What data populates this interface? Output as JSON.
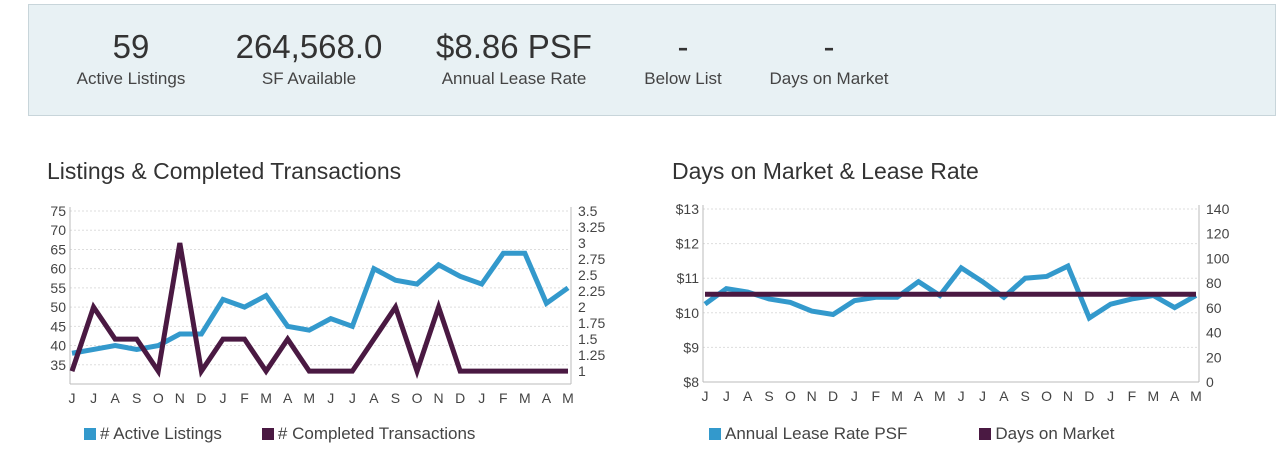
{
  "stats": [
    {
      "value": "59",
      "label": "Active Listings"
    },
    {
      "value": "264,568.0",
      "label": "SF Available"
    },
    {
      "value": "$8.86 PSF",
      "label": "Annual Lease Rate"
    },
    {
      "value": "-",
      "label": "Below List"
    },
    {
      "value": "-",
      "label": "Days on Market"
    }
  ],
  "colors": {
    "blue": "#3399cc",
    "purple": "#4a1942"
  },
  "chart_data": [
    {
      "type": "line",
      "title": "Listings & Completed Transactions",
      "categories": [
        "J",
        "J",
        "A",
        "S",
        "O",
        "N",
        "D",
        "J",
        "F",
        "M",
        "A",
        "M",
        "J",
        "J",
        "A",
        "S",
        "O",
        "N",
        "D",
        "J",
        "F",
        "M",
        "A",
        "M"
      ],
      "y_left": {
        "ticks": [
          "75",
          "70",
          "65",
          "60",
          "55",
          "50",
          "45",
          "40",
          "35"
        ],
        "range": [
          30,
          75
        ]
      },
      "y_right": {
        "ticks": [
          "3.5",
          "3.25",
          "3",
          "2.75",
          "2.5",
          "2.25",
          "2",
          "1.75",
          "1.5",
          "1.25",
          "1"
        ],
        "range": [
          0.8,
          3.5
        ]
      },
      "grid": true,
      "series": [
        {
          "name": "# Active Listings",
          "axis": "left",
          "color": "#3399cc",
          "values": [
            38,
            39,
            40,
            39,
            40,
            43,
            43,
            52,
            50,
            53,
            45,
            44,
            47,
            45,
            60,
            57,
            56,
            61,
            58,
            56,
            64,
            64,
            51,
            55
          ]
        },
        {
          "name": "# Completed Transactions",
          "axis": "right",
          "color": "#4a1942",
          "values": [
            1,
            2,
            1.5,
            1.5,
            1,
            3,
            1,
            1.5,
            1.5,
            1,
            1.5,
            1,
            1,
            1,
            1.5,
            2,
            1,
            2,
            1,
            1,
            1,
            1,
            1,
            1
          ]
        }
      ],
      "legend": "bottom"
    },
    {
      "type": "line",
      "title": "Days on Market & Lease Rate",
      "categories": [
        "J",
        "J",
        "A",
        "S",
        "O",
        "N",
        "D",
        "J",
        "F",
        "M",
        "A",
        "M",
        "J",
        "J",
        "A",
        "S",
        "O",
        "N",
        "D",
        "J",
        "F",
        "M",
        "A",
        "M"
      ],
      "y_left": {
        "ticks": [
          "$13",
          "$12",
          "$11",
          "$10",
          "$9",
          "$8"
        ],
        "range": [
          8,
          13
        ]
      },
      "y_right": {
        "ticks": [
          "140",
          "120",
          "100",
          "80",
          "60",
          "40",
          "20",
          "0"
        ],
        "range": [
          0,
          140
        ]
      },
      "grid": true,
      "series": [
        {
          "name": "Annual Lease Rate PSF",
          "axis": "left",
          "color": "#3399cc",
          "values": [
            10.25,
            10.7,
            10.6,
            10.4,
            10.3,
            10.05,
            9.95,
            10.35,
            10.45,
            10.45,
            10.9,
            10.5,
            11.3,
            10.9,
            10.45,
            11.0,
            11.05,
            11.35,
            9.85,
            10.25,
            10.4,
            10.5,
            10.15,
            10.5
          ]
        },
        {
          "name": "Days on Market",
          "axis": "right",
          "color": "#4a1942",
          "values": [
            71,
            71,
            71,
            71,
            71,
            71,
            71,
            71,
            71,
            71,
            71,
            71,
            71,
            71,
            71,
            71,
            71,
            71,
            71,
            71,
            71,
            71,
            71,
            71
          ]
        }
      ],
      "legend": "bottom"
    }
  ]
}
